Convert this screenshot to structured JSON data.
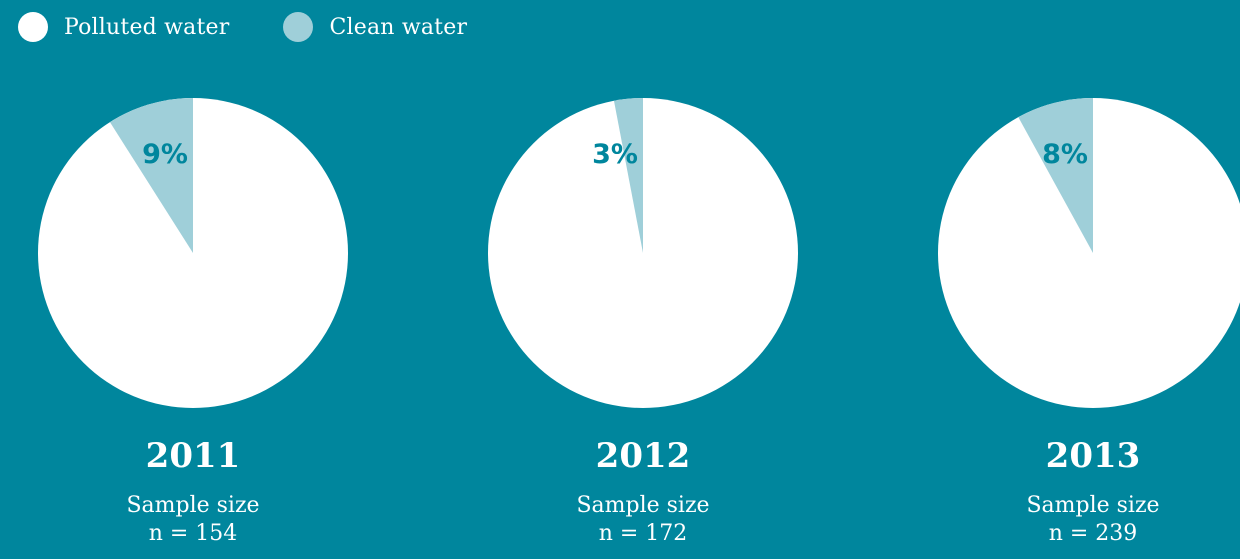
{
  "legend": [
    {
      "label": "Polluted water",
      "color": "#ffffff"
    },
    {
      "label": "Clean water",
      "color": "#9fcfd9"
    }
  ],
  "colors": {
    "background": "#00869d",
    "polluted": "#ffffff",
    "clean": "#9fcfd9",
    "label": "#00869d"
  },
  "chart_data": {
    "type": "pie",
    "series_names": [
      "Polluted water",
      "Clean water"
    ],
    "charts": [
      {
        "year": "2011",
        "sample_label": "Sample size",
        "sample_n": "n = 154",
        "clean_pct": 9,
        "polluted_pct": 91,
        "clean_label": "9%"
      },
      {
        "year": "2012",
        "sample_label": "Sample size",
        "sample_n": "n = 172",
        "clean_pct": 3,
        "polluted_pct": 97,
        "clean_label": "3%"
      },
      {
        "year": "2013",
        "sample_label": "Sample size",
        "sample_n": "n = 239",
        "clean_pct": 8,
        "polluted_pct": 92,
        "clean_label": "8%"
      }
    ]
  }
}
